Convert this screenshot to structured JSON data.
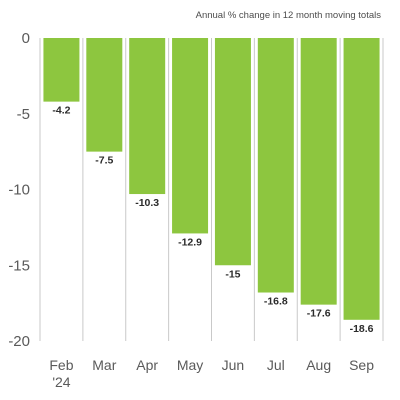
{
  "chart_data": {
    "type": "bar",
    "subtitle": "Annual % change in 12 month moving totals",
    "categories": [
      "Feb\n'24",
      "Mar",
      "Apr",
      "May",
      "Jun",
      "Jul",
      "Aug",
      "Sep"
    ],
    "values": [
      -4.2,
      -7.5,
      -10.3,
      -12.9,
      -15,
      -16.8,
      -17.6,
      -18.6
    ],
    "data_labels": [
      "-4.2",
      "-7.5",
      "-10.3",
      "-12.9",
      "-15",
      "-16.8",
      "-17.6",
      "-18.6"
    ],
    "yticks": [
      0,
      -5,
      -10,
      -15,
      -20
    ],
    "ytick_labels": [
      "0",
      "-5",
      "-10",
      "-15",
      "-20"
    ],
    "ylim": [
      -20,
      0
    ],
    "grid": true,
    "grid_axis": "vertical",
    "legend": "none",
    "colors": {
      "bar": "#8dc63f",
      "grid": "#c9c9c9",
      "text": "#5a5a5a",
      "label": "#2b2b2b"
    }
  }
}
